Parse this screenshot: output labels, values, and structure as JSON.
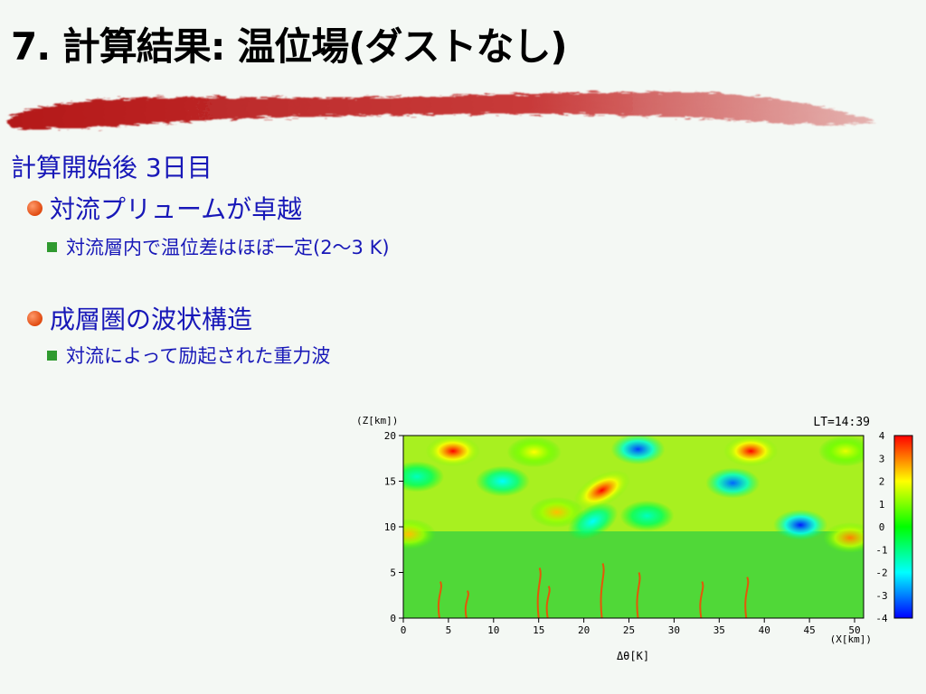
{
  "slide": {
    "title": "7. 計算結果: 温位場(ダストなし)",
    "section": "計算開始後 3日目",
    "bullets": [
      {
        "text": "対流プリュームが卓越",
        "sub": "対流層内で温位差はほぼ一定(2〜3 K)"
      },
      {
        "text": "成層圏の波状構造",
        "sub": "対流によって励起された重力波"
      }
    ]
  },
  "colors": {
    "title": "#000000",
    "body_text": "#1818b8",
    "brush": "#c01818",
    "bullet": "#e05a20",
    "sub_bullet": "#2f9a2f"
  },
  "chart_data": {
    "type": "heatmap",
    "title": "",
    "time_label": "LT=14:39",
    "xlabel": "(X[km])",
    "ylabel": "(Z[km])",
    "quantity_label": "Δθ[K]",
    "xlim": [
      0,
      51
    ],
    "ylim": [
      0,
      20
    ],
    "x_ticks": [
      "0",
      "5",
      "10",
      "15",
      "20",
      "25",
      "30",
      "35",
      "40",
      "45",
      "50"
    ],
    "y_ticks": [
      "0",
      "5",
      "10",
      "15",
      "20"
    ],
    "colorbar": {
      "min": -4,
      "max": 4,
      "ticks": [
        "4",
        "3",
        "2",
        "1",
        "0",
        "-1",
        "-2",
        "-3",
        "-4"
      ]
    },
    "features": [
      {
        "kind": "warm",
        "x": 5.5,
        "z": 18.3,
        "amp": 4
      },
      {
        "kind": "warm",
        "x": 14.5,
        "z": 18.2,
        "amp": 2
      },
      {
        "kind": "cold",
        "x": 26,
        "z": 18.5,
        "amp": -3.5
      },
      {
        "kind": "warm",
        "x": 38.5,
        "z": 18.3,
        "amp": 4
      },
      {
        "kind": "warm",
        "x": 49,
        "z": 18.3,
        "amp": 1.8
      },
      {
        "kind": "cold",
        "x": 11,
        "z": 15,
        "amp": -2
      },
      {
        "kind": "cold",
        "x": 36.5,
        "z": 14.8,
        "amp": -3.2
      },
      {
        "kind": "warm",
        "x": 22,
        "z": 14,
        "amp": 4
      },
      {
        "kind": "warm",
        "x": 17,
        "z": 11.6,
        "amp": 2.5
      },
      {
        "kind": "cold",
        "x": 21,
        "z": 10.6,
        "amp": -2
      },
      {
        "kind": "cold",
        "x": 27,
        "z": 11.2,
        "amp": -1.5
      },
      {
        "kind": "cold",
        "x": 44,
        "z": 10.2,
        "amp": -3.8
      },
      {
        "kind": "warm",
        "x": 49.5,
        "z": 8.8,
        "amp": 3
      },
      {
        "kind": "warm",
        "x": 0.6,
        "z": 9.2,
        "amp": 2.5
      },
      {
        "kind": "cold",
        "x": 1.5,
        "z": 15.5,
        "amp": -1.5
      }
    ]
  }
}
